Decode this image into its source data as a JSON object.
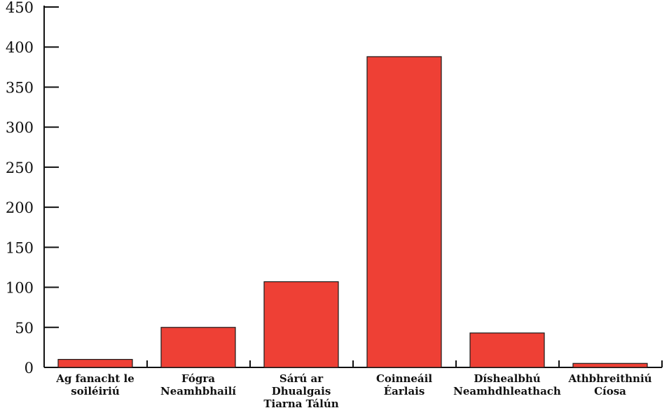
{
  "chart_data": {
    "type": "bar",
    "title": "",
    "xlabel": "",
    "ylabel": "",
    "categories": [
      [
        "Ag fanacht le",
        "soiléiriú"
      ],
      [
        "Fógra",
        "Neamhbhailí"
      ],
      [
        "Sárú ar",
        "Dhualgais",
        "Tiarna Tálún"
      ],
      [
        "Coinneáil",
        "Éarlais"
      ],
      [
        "Díshealbhú",
        "Neamhdhleathach"
      ],
      [
        "Athbhreithniú",
        "Cíosa"
      ]
    ],
    "values": [
      10,
      50,
      107,
      388,
      43,
      5
    ],
    "ylim": [
      0,
      450
    ],
    "yticks": [
      "0",
      "50",
      "100",
      "150",
      "200",
      "250",
      "300",
      "350",
      "400",
      "450"
    ],
    "grid": false,
    "legend": "none",
    "colors": {
      "bar_fill": "#ee4035",
      "bar_stroke": "#1a1a1a",
      "axis": "#111111"
    }
  }
}
